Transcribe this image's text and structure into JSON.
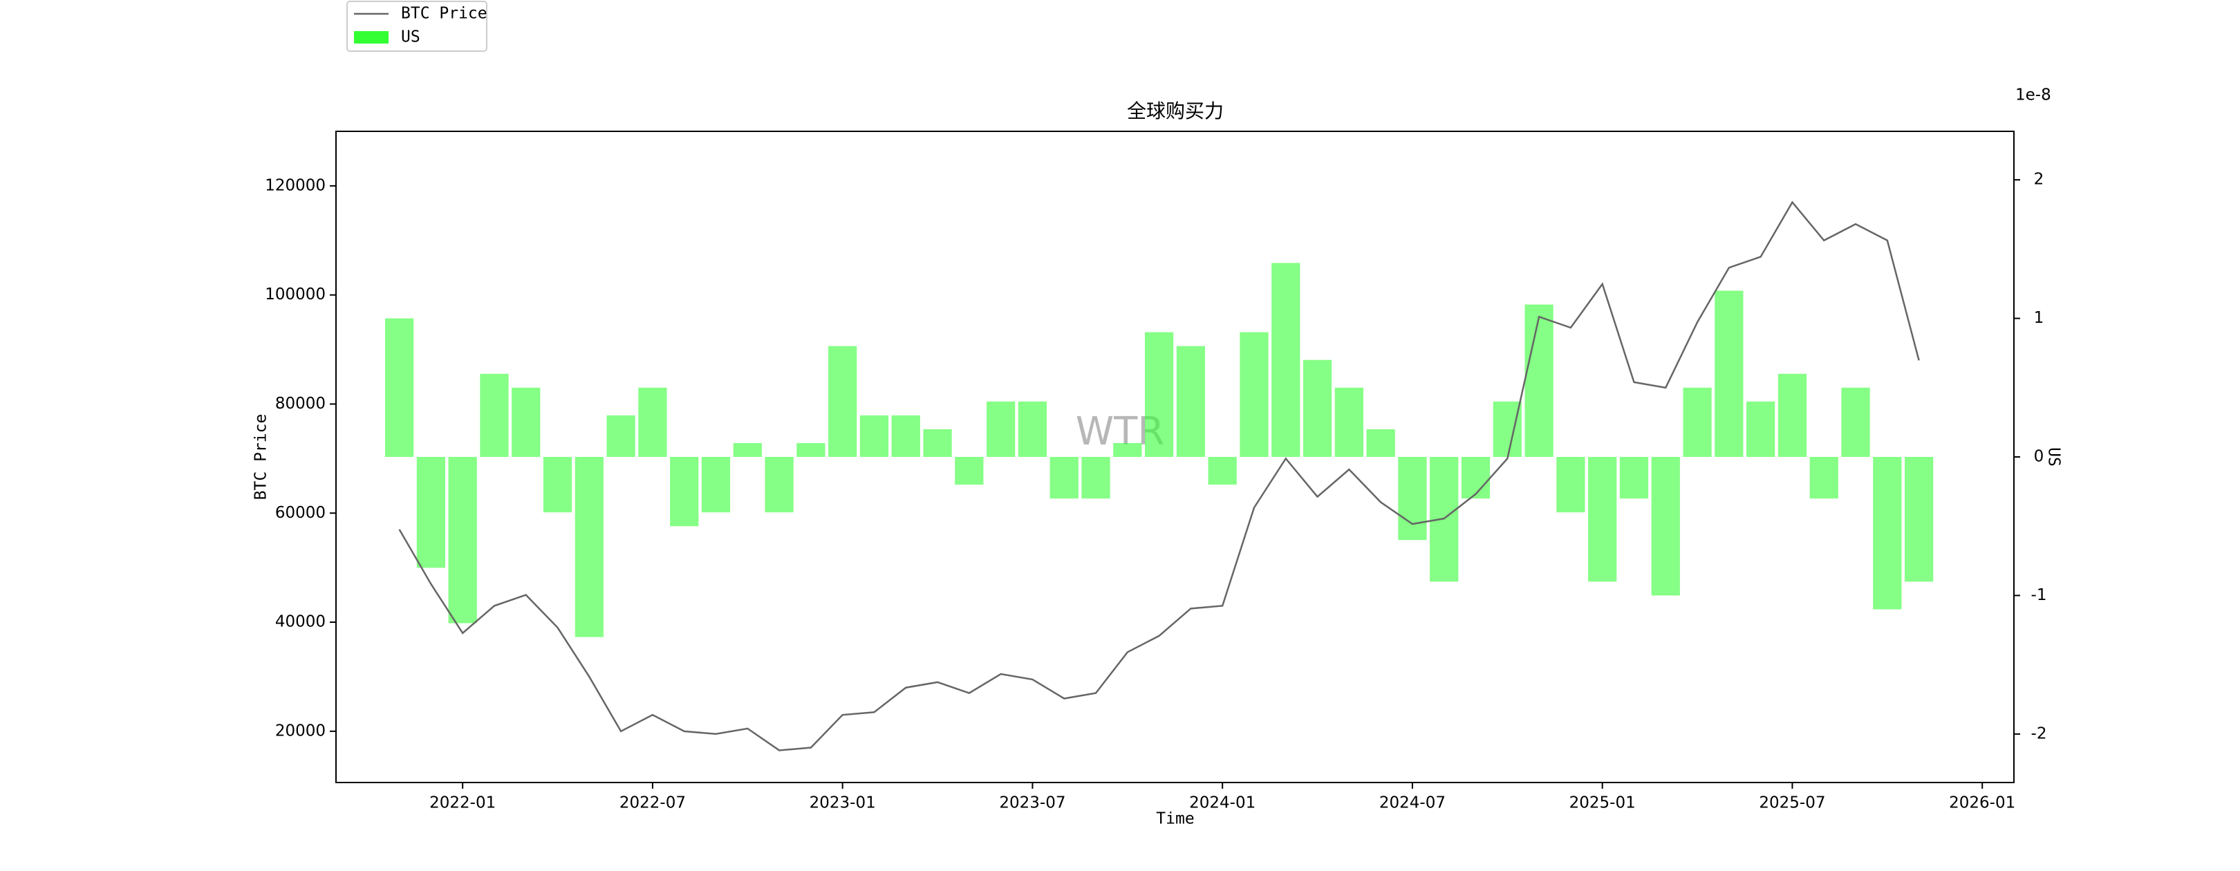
{
  "chart_data": {
    "type": "line",
    "title": "全球购买力",
    "xlabel": "Time",
    "ylabel": "BTC Price",
    "y2label": "US",
    "y2_offset": "1e-8",
    "watermark": "WTR",
    "x": [
      "2021-11",
      "2021-12",
      "2022-01",
      "2022-02",
      "2022-03",
      "2022-04",
      "2022-05",
      "2022-06",
      "2022-07",
      "2022-08",
      "2022-09",
      "2022-10",
      "2022-11",
      "2022-12",
      "2023-01",
      "2023-02",
      "2023-03",
      "2023-04",
      "2023-05",
      "2023-06",
      "2023-07",
      "2023-08",
      "2023-09",
      "2023-10",
      "2023-11",
      "2023-12",
      "2024-01",
      "2024-02",
      "2024-03",
      "2024-04",
      "2024-05",
      "2024-06",
      "2024-07",
      "2024-08",
      "2024-09",
      "2024-10",
      "2024-11",
      "2024-12",
      "2025-01",
      "2025-02",
      "2025-03",
      "2025-04",
      "2025-05",
      "2025-06",
      "2025-07",
      "2025-08",
      "2025-09",
      "2025-10",
      "2025-11"
    ],
    "series": [
      {
        "name": "BTC Price",
        "color": "#666666",
        "values": [
          57000,
          47000,
          38000,
          43000,
          45000,
          39000,
          30000,
          20000,
          23000,
          20000,
          19500,
          20500,
          16500,
          17000,
          23000,
          23500,
          28000,
          29000,
          27000,
          30500,
          29500,
          26000,
          27000,
          34500,
          37500,
          42500,
          43000,
          61000,
          70000,
          63000,
          68000,
          62000,
          58000,
          59000,
          63500,
          70000,
          96000,
          94000,
          102000,
          84000,
          83000,
          95000,
          105000,
          107000,
          117000,
          110000,
          113000,
          110000,
          88000
        ]
      },
      {
        "name": "US",
        "color": "#33ff33",
        "type": "bar",
        "axis": "y2",
        "values": [
          1.0,
          -0.8,
          -1.2,
          0.6,
          0.5,
          -0.4,
          -1.3,
          0.3,
          0.5,
          -0.5,
          -0.4,
          0.1,
          -0.4,
          0.1,
          0.8,
          0.3,
          0.3,
          0.2,
          -0.2,
          0.4,
          0.4,
          -0.3,
          -0.3,
          0.1,
          0.9,
          0.8,
          -0.2,
          0.9,
          1.4,
          0.7,
          0.5,
          0.2,
          -0.6,
          -0.9,
          -0.3,
          0.4,
          1.1,
          -0.4,
          -0.9,
          -0.3,
          -1.0,
          0.5,
          1.2,
          0.4,
          0.6,
          -0.3,
          0.5,
          -1.1,
          -0.9
        ]
      }
    ],
    "xlim": [
      "2021-09",
      "2026-02"
    ],
    "xticks": [
      "2022-01",
      "2022-07",
      "2023-01",
      "2023-07",
      "2024-01",
      "2024-07",
      "2025-01",
      "2025-07",
      "2026-01"
    ],
    "ylim": [
      10600,
      130000
    ],
    "yticks": [
      20000,
      40000,
      60000,
      80000,
      100000,
      120000
    ],
    "y2lim": [
      -2.35,
      2.35
    ],
    "y2ticks": [
      -2,
      -1,
      0,
      1,
      2
    ],
    "legend": "upper left"
  }
}
